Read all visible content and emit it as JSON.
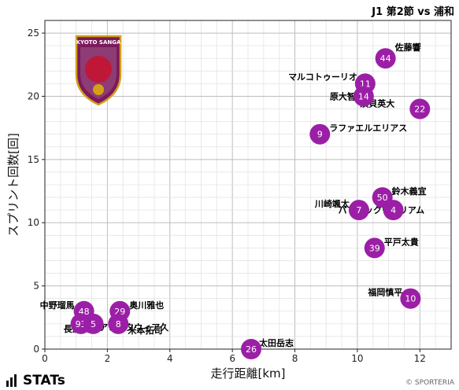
{
  "header": {
    "match_title": "J1 第2節 vs 浦和"
  },
  "footer": {
    "brand": "STATs",
    "credit": "© SPORTERIA"
  },
  "crest": {
    "text": "KYOTO SANGA",
    "color_primary": "#7b1a5c",
    "color_accent": "#d4a017"
  },
  "chart_data": {
    "type": "scatter",
    "title": "",
    "xlabel": "走行距離[km]",
    "ylabel": "スプリント回数[回]",
    "xlim": [
      0,
      13
    ],
    "ylim": [
      0,
      26
    ],
    "xticks": [
      0,
      2,
      4,
      6,
      8,
      10,
      12
    ],
    "yticks": [
      0,
      5,
      10,
      15,
      20,
      25
    ],
    "grid": true,
    "marker_color": "#9b1fa6",
    "points": [
      {
        "number": "44",
        "name": "佐藤響",
        "x": 10.9,
        "y": 23
      },
      {
        "number": "11",
        "name": "マルコトゥーリオ",
        "x": 10.25,
        "y": 21
      },
      {
        "number": "14",
        "name": "原大智",
        "x": 10.2,
        "y": 20
      },
      {
        "number": "22",
        "name": "須貝英大",
        "x": 12.0,
        "y": 19
      },
      {
        "number": "9",
        "name": "ラファエルエリアス",
        "x": 8.8,
        "y": 17
      },
      {
        "number": "50",
        "name": "鈴木義宜",
        "x": 10.8,
        "y": 12
      },
      {
        "number": "7",
        "name": "川崎颯太",
        "x": 10.05,
        "y": 11
      },
      {
        "number": "4",
        "name": "パトリックウィリアム",
        "x": 11.15,
        "y": 11
      },
      {
        "number": "39",
        "name": "平戸太貴",
        "x": 10.55,
        "y": 8
      },
      {
        "number": "10",
        "name": "福岡慎平",
        "x": 11.7,
        "y": 4
      },
      {
        "number": "48",
        "name": "中野瑠馬",
        "x": 1.25,
        "y": 3
      },
      {
        "number": "29",
        "name": "奥川雅也",
        "x": 2.4,
        "y": 3
      },
      {
        "number": "8",
        "name": "アピアタウィア久",
        "x": 2.35,
        "y": 2
      },
      {
        "number": "93",
        "name": "長沢駿",
        "x": 1.15,
        "y": 2
      },
      {
        "number": "5",
        "name": "米本拓司",
        "x": 1.55,
        "y": 2
      },
      {
        "number": "26",
        "name": "太田岳志",
        "x": 6.6,
        "y": 0
      }
    ]
  }
}
